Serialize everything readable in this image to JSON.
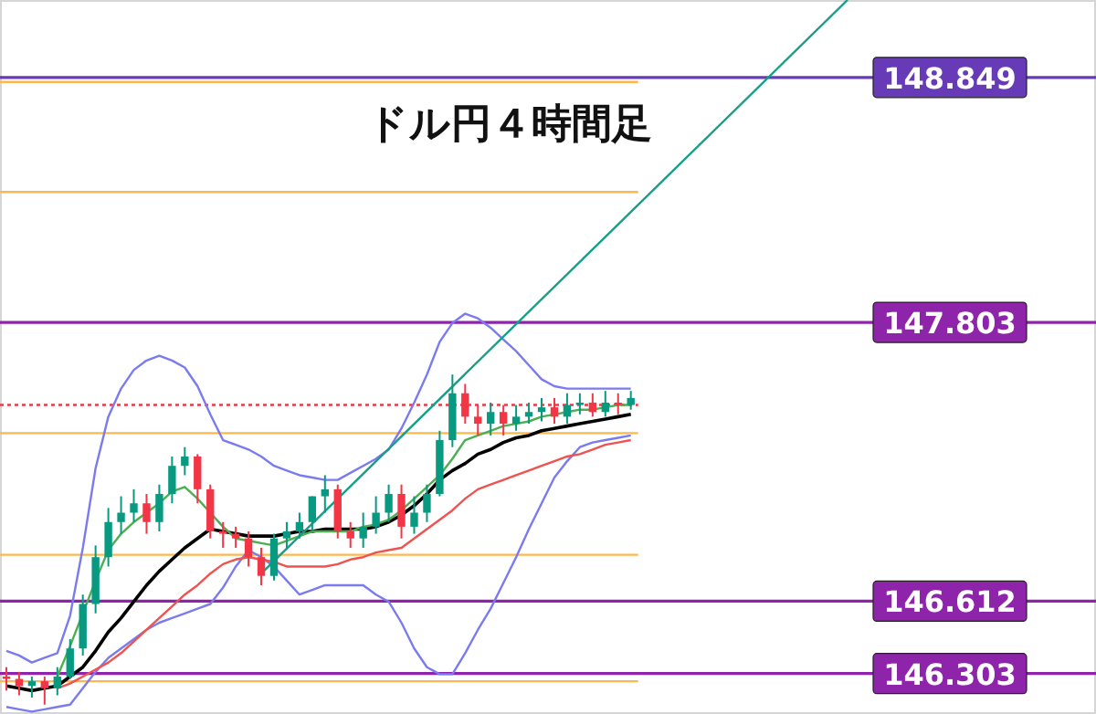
{
  "chart_data": {
    "type": "candlestick",
    "title": "ドル円４時間足",
    "tick_labels": "y",
    "ylim": [
      146.13,
      149.18
    ],
    "yticks": [
      146.303,
      146.612,
      147.803,
      148.849
    ],
    "categories": [
      null,
      null,
      null,
      null,
      null,
      null,
      null,
      null,
      null,
      null,
      null,
      null,
      null,
      null,
      null,
      null,
      null,
      null,
      null,
      null,
      null,
      null,
      null,
      null,
      null,
      null,
      null,
      null,
      null,
      null,
      null,
      null,
      null,
      null,
      null,
      null,
      null,
      null,
      null,
      null,
      null,
      null,
      null,
      null,
      null,
      null,
      null,
      null,
      null,
      null,
      null,
      null,
      null,
      null,
      null,
      null,
      null,
      null,
      null,
      null,
      null,
      null,
      null,
      null,
      null,
      null,
      null,
      null,
      null,
      null,
      null,
      null,
      null,
      null,
      null,
      null,
      null,
      null,
      null,
      null,
      null,
      null,
      null,
      null,
      null,
      null
    ],
    "ohlc": [
      [
        146.29,
        146.33,
        146.23,
        146.28
      ],
      [
        146.28,
        146.31,
        146.21,
        146.25
      ],
      [
        146.25,
        146.29,
        146.2,
        146.27
      ],
      [
        146.27,
        146.29,
        146.17,
        146.24
      ],
      [
        146.24,
        146.33,
        146.21,
        146.29
      ],
      [
        146.29,
        146.45,
        146.28,
        146.41
      ],
      [
        146.41,
        146.64,
        146.38,
        146.6
      ],
      [
        146.6,
        146.85,
        146.56,
        146.8
      ],
      [
        146.8,
        147.01,
        146.76,
        146.95
      ],
      [
        146.95,
        147.06,
        146.9,
        146.99
      ],
      [
        146.99,
        147.09,
        146.95,
        147.03
      ],
      [
        147.03,
        147.07,
        146.9,
        146.95
      ],
      [
        146.95,
        147.11,
        146.91,
        147.07
      ],
      [
        147.07,
        147.23,
        147.03,
        147.19
      ],
      [
        147.19,
        147.27,
        147.15,
        147.23
      ],
      [
        147.23,
        147.24,
        147.03,
        147.09
      ],
      [
        147.09,
        147.11,
        146.88,
        146.91
      ],
      [
        146.91,
        146.95,
        146.84,
        146.9
      ],
      [
        146.9,
        146.93,
        146.84,
        146.88
      ],
      [
        146.88,
        146.91,
        146.76,
        146.8
      ],
      [
        146.8,
        146.84,
        146.68,
        146.72
      ],
      [
        146.72,
        146.9,
        146.7,
        146.88
      ],
      [
        146.88,
        146.95,
        146.84,
        146.91
      ],
      [
        146.91,
        146.99,
        146.88,
        146.95
      ],
      [
        146.95,
        147.06,
        146.91,
        147.06
      ],
      [
        147.06,
        147.15,
        146.99,
        147.09
      ],
      [
        147.09,
        147.11,
        146.88,
        146.91
      ],
      [
        146.91,
        146.95,
        146.84,
        146.88
      ],
      [
        146.88,
        146.99,
        146.84,
        146.93
      ],
      [
        146.93,
        147.06,
        146.9,
        146.99
      ],
      [
        146.99,
        147.11,
        146.95,
        147.07
      ],
      [
        147.07,
        147.11,
        146.88,
        146.93
      ],
      [
        146.93,
        147.06,
        146.9,
        146.99
      ],
      [
        146.99,
        147.11,
        146.95,
        147.07
      ],
      [
        147.07,
        147.34,
        147.06,
        147.3
      ],
      [
        147.3,
        147.58,
        147.27,
        147.5
      ],
      [
        147.5,
        147.54,
        147.37,
        147.4
      ],
      [
        147.4,
        147.45,
        147.32,
        147.37
      ],
      [
        147.37,
        147.46,
        147.32,
        147.42
      ],
      [
        147.42,
        147.45,
        147.32,
        147.37
      ],
      [
        147.37,
        147.45,
        147.34,
        147.4
      ],
      [
        147.4,
        147.46,
        147.37,
        147.42
      ],
      [
        147.42,
        147.48,
        147.38,
        147.44
      ],
      [
        147.44,
        147.48,
        147.37,
        147.4
      ],
      [
        147.4,
        147.5,
        147.37,
        147.45
      ],
      [
        147.45,
        147.5,
        147.41,
        147.46
      ],
      [
        147.46,
        147.5,
        147.4,
        147.42
      ],
      [
        147.42,
        147.51,
        147.4,
        147.46
      ],
      [
        147.46,
        147.5,
        147.41,
        147.45
      ],
      [
        147.45,
        147.51,
        147.43,
        147.48
      ],
      null,
      null,
      null,
      null,
      null,
      null,
      null,
      null,
      null,
      null,
      null,
      null,
      null,
      null,
      null,
      null,
      null,
      null,
      null,
      null,
      null,
      null,
      null,
      null,
      null,
      null,
      null,
      null,
      null,
      null,
      null,
      null,
      null,
      null,
      null,
      null
    ],
    "colors": [
      "#f23645",
      "#f23645",
      "#089981",
      "#f23645",
      "#089981",
      "#089981",
      "#089981",
      "#089981",
      "#089981",
      "#089981",
      "#089981",
      "#f23645",
      "#089981",
      "#089981",
      "#089981",
      "#f23645",
      "#f23645",
      "#f23645",
      "#f23645",
      "#f23645",
      "#f23645",
      "#089981",
      "#089981",
      "#089981",
      "#089981",
      "#089981",
      "#f23645",
      "#f23645",
      "#089981",
      "#089981",
      "#089981",
      "#f23645",
      "#089981",
      "#089981",
      "#089981",
      "#089981",
      "#f23645",
      "#f23645",
      "#089981",
      "#f23645",
      "#089981",
      "#089981",
      "#089981",
      "#f23645",
      "#089981",
      "#089981",
      "#f23645",
      "#089981",
      "#f23645",
      "#089981",
      null,
      null,
      null,
      null,
      null,
      null,
      null,
      null,
      null,
      null,
      null,
      null,
      null,
      null,
      null,
      null,
      null,
      null,
      null,
      null,
      null,
      null,
      null,
      null,
      null,
      null,
      null,
      null,
      null,
      null,
      null,
      null,
      null,
      null,
      null,
      null
    ],
    "series": [
      {
        "type": "line",
        "color": "#7b7bf0",
        "values": [
          146.4,
          146.38,
          146.35,
          146.37,
          146.39,
          146.55,
          146.84,
          147.18,
          147.4,
          147.52,
          147.6,
          147.64,
          147.66,
          147.64,
          147.61,
          147.53,
          147.41,
          147.3,
          147.28,
          147.26,
          147.23,
          147.19,
          147.17,
          147.15,
          147.14,
          147.13,
          147.13,
          147.16,
          147.19,
          147.22,
          147.26,
          147.35,
          147.46,
          147.58,
          147.72,
          147.8,
          147.84,
          147.82,
          147.78,
          147.73,
          147.68,
          147.62,
          147.56,
          147.53,
          147.52,
          147.52,
          147.52,
          147.52,
          147.52,
          147.52,
          null,
          null,
          null,
          null,
          null,
          null,
          null,
          null,
          null,
          null,
          null,
          null,
          null,
          null,
          null,
          null,
          null,
          null,
          null,
          null,
          null,
          null,
          null,
          null,
          null,
          null,
          null,
          null,
          null,
          null,
          null,
          null,
          null,
          null,
          null,
          null
        ]
      },
      {
        "type": "line",
        "color": "#7b7bf0",
        "values": [
          146.16,
          146.15,
          146.14,
          146.15,
          146.16,
          146.17,
          146.24,
          146.31,
          146.37,
          146.41,
          146.45,
          146.49,
          146.52,
          146.54,
          146.56,
          146.58,
          146.6,
          146.67,
          146.76,
          146.83,
          146.8,
          146.76,
          146.7,
          146.64,
          146.66,
          146.68,
          146.68,
          146.68,
          146.68,
          146.64,
          146.61,
          146.52,
          146.41,
          146.33,
          146.3,
          146.3,
          146.39,
          146.49,
          146.58,
          146.69,
          146.8,
          146.92,
          147.03,
          147.14,
          147.21,
          147.27,
          147.29,
          147.3,
          147.31,
          147.32,
          null,
          null,
          null,
          null,
          null,
          null,
          null,
          null,
          null,
          null,
          null,
          null,
          null,
          null,
          null,
          null,
          null,
          null,
          null,
          null,
          null,
          null,
          null,
          null,
          null,
          null,
          null,
          null,
          null,
          null,
          null,
          null,
          null,
          null,
          null,
          null
        ]
      },
      {
        "type": "line",
        "color": "#000000",
        "values": [
          146.25,
          146.24,
          146.23,
          146.24,
          146.25,
          146.29,
          146.33,
          146.4,
          146.48,
          146.54,
          146.61,
          146.68,
          146.74,
          146.79,
          146.84,
          146.88,
          146.92,
          146.91,
          146.9,
          146.89,
          146.89,
          146.89,
          146.9,
          146.91,
          146.91,
          146.92,
          146.92,
          146.92,
          146.92,
          146.93,
          146.95,
          146.98,
          147.02,
          147.07,
          147.13,
          147.17,
          147.2,
          147.24,
          147.26,
          147.29,
          147.31,
          147.32,
          147.34,
          147.35,
          147.36,
          147.37,
          147.38,
          147.39,
          147.4,
          147.41,
          null,
          null,
          null,
          null,
          null,
          null,
          null,
          null,
          null,
          null,
          null,
          null,
          null,
          null,
          null,
          null,
          null,
          null,
          null,
          null,
          null,
          null,
          null,
          null,
          null,
          null,
          null,
          null,
          null,
          null,
          null,
          null,
          null,
          null,
          null,
          null
        ]
      },
      {
        "type": "line",
        "color": "#4caf50",
        "values": [
          null,
          null,
          null,
          null,
          146.29,
          146.42,
          null,
          146.7,
          146.83,
          146.9,
          146.95,
          146.99,
          147.03,
          147.08,
          147.1,
          147.05,
          146.99,
          146.93,
          146.88,
          146.87,
          146.86,
          146.85,
          146.87,
          146.89,
          146.91,
          146.91,
          146.91,
          146.91,
          146.93,
          146.94,
          146.96,
          147.0,
          147.05,
          147.1,
          147.15,
          147.22,
          147.3,
          147.32,
          147.34,
          147.36,
          147.37,
          147.38,
          147.4,
          147.41,
          147.42,
          147.43,
          147.43,
          147.44,
          147.45,
          147.45,
          null,
          null,
          null,
          null,
          null,
          null,
          null,
          null,
          null,
          null,
          null,
          null,
          null,
          null,
          null,
          null,
          null,
          null,
          null,
          null,
          null,
          null,
          null,
          null,
          null,
          null,
          null,
          null,
          null,
          null,
          null,
          null,
          null,
          null,
          null,
          null
        ]
      },
      {
        "type": "line",
        "color": "#ef5350",
        "values": [
          null,
          null,
          null,
          null,
          146.24,
          146.26,
          146.29,
          146.32,
          146.35,
          146.39,
          146.44,
          146.49,
          146.54,
          146.59,
          146.64,
          146.68,
          146.73,
          146.77,
          146.79,
          146.8,
          146.79,
          146.78,
          146.76,
          146.76,
          146.76,
          146.76,
          146.77,
          146.79,
          146.8,
          146.82,
          146.83,
          146.84,
          146.88,
          146.92,
          146.96,
          147.0,
          147.05,
          147.09,
          147.11,
          147.13,
          147.15,
          147.17,
          147.19,
          147.21,
          147.23,
          147.24,
          147.26,
          147.28,
          147.29,
          147.3,
          null,
          null,
          null,
          null,
          null,
          null,
          null,
          null,
          null,
          null,
          null,
          null,
          null,
          null,
          null,
          null,
          null,
          null,
          null,
          null,
          null,
          null,
          null,
          null,
          null,
          null,
          null,
          null,
          null,
          null,
          null,
          null,
          null,
          null,
          null,
          null
        ]
      },
      {
        "type": "line",
        "color": "#159f87",
        "values": [
          null,
          null,
          null,
          null,
          null,
          null,
          null,
          null,
          null,
          null,
          null,
          null,
          null,
          null,
          null,
          null,
          null,
          null,
          null,
          null,
          146.73,
          null,
          null,
          null,
          null,
          null,
          null,
          null,
          null,
          null,
          null,
          null,
          null,
          null,
          null,
          null,
          null,
          null,
          null,
          null,
          null,
          null,
          null,
          null,
          null,
          null,
          null,
          null,
          null,
          null,
          null,
          null,
          null,
          null,
          null,
          null,
          null,
          null,
          null,
          null,
          null,
          null,
          null,
          null,
          null,
          null,
          149.18,
          null,
          null,
          null,
          null,
          null,
          null,
          null,
          null,
          null,
          null,
          null,
          null,
          null,
          null,
          null,
          null,
          null,
          null,
          null
        ]
      }
    ],
    "ref_lines": [
      {
        "axis": "y",
        "value": 148.849,
        "color": "#673ab7"
      },
      {
        "axis": "y",
        "value": 147.803,
        "color": "#8e24aa"
      },
      {
        "axis": "y",
        "value": 146.612,
        "color": "#8e24aa"
      },
      {
        "axis": "y",
        "value": 146.303,
        "color": "#8e24aa"
      },
      {
        "axis": "y",
        "value": 148.83,
        "color": "#ffb74d"
      },
      {
        "axis": "y",
        "value": 148.36,
        "color": "#ffb74d"
      },
      {
        "axis": "y",
        "value": 147.33,
        "color": "#ffb74d"
      },
      {
        "axis": "y",
        "value": 146.81,
        "color": "#ffb74d"
      },
      {
        "axis": "y",
        "value": 146.27,
        "color": "#ffb74d"
      },
      {
        "axis": "y",
        "value": 147.45,
        "color": "#f23645",
        "line_style": "dotted"
      }
    ]
  }
}
